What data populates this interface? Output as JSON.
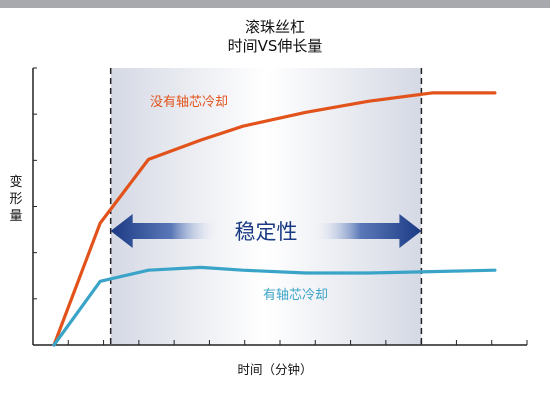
{
  "chart_data": {
    "type": "line",
    "title": [
      "滚珠丝杠",
      "时间VS伸长量"
    ],
    "xlabel": "时间（分钟）",
    "ylabel": [
      "变",
      "形",
      "量"
    ],
    "xlim": [
      0,
      20
    ],
    "ylim": [
      0,
      100
    ],
    "x_tick_count": 14,
    "y_tick_count": 6,
    "grid": false,
    "series": [
      {
        "name": "没有轴芯冷却",
        "color": "#e2531c",
        "x": [
          1.0,
          3.2,
          5.5,
          8.0,
          10.0,
          13.0,
          16.0,
          19.0,
          20.0,
          22.0
        ],
        "y": [
          0,
          44,
          67,
          74,
          79,
          84,
          88,
          91,
          91,
          91
        ]
      },
      {
        "name": "有轴芯冷却",
        "color": "#3aa4c8",
        "x": [
          1.0,
          3.2,
          5.5,
          8.0,
          10.0,
          13.0,
          16.0,
          19.0,
          22.0
        ],
        "y": [
          0,
          23,
          27,
          28,
          27,
          26,
          26,
          26.5,
          27
        ]
      }
    ],
    "annotations": {
      "stable_band": {
        "label": "稳定性",
        "x_start": 3.7,
        "x_end": 18.5,
        "arrow_color": "#1b3a84"
      }
    },
    "colors": {
      "no_cooling": "#e2531c",
      "cooling": "#3aa4c8",
      "axis": "#222222",
      "band": "#d7dbe6"
    }
  }
}
